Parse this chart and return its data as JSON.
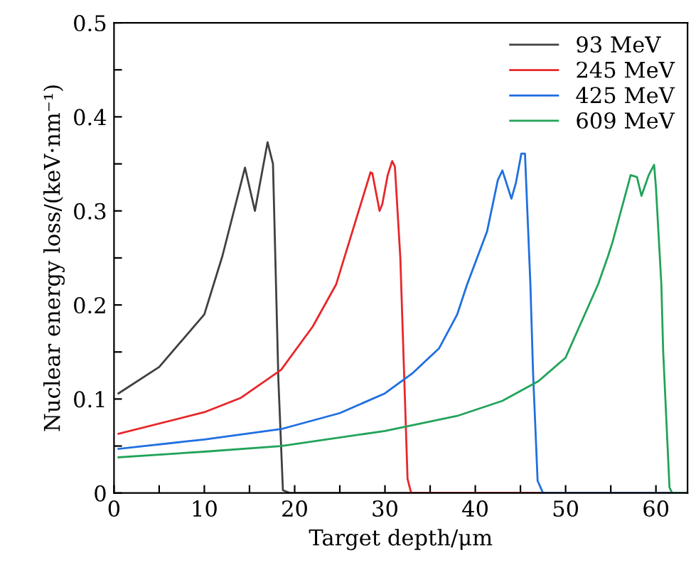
{
  "chart_data": {
    "type": "line",
    "xlabel": "Target depth/μm",
    "ylabel": "Nuclear energy loss/(keV·nm⁻¹)",
    "xlim": [
      0,
      63.5
    ],
    "ylim": [
      0,
      0.5
    ],
    "xticks": [
      0,
      {
        "value": 5,
        "label": null
      },
      10,
      {
        "value": 15,
        "label": null
      },
      20,
      {
        "value": 25,
        "label": null
      },
      30,
      {
        "value": 35,
        "label": null
      },
      40,
      {
        "value": 45,
        "label": null
      },
      50,
      {
        "value": 55,
        "label": null
      },
      60
    ],
    "yticks": [
      0,
      {
        "value": 0.05,
        "label": null
      },
      0.1,
      {
        "value": 0.15,
        "label": null
      },
      0.2,
      {
        "value": 0.25,
        "label": null
      },
      0.3,
      {
        "value": 0.35,
        "label": null
      },
      0.4,
      {
        "value": 0.45,
        "label": null
      },
      0.5
    ],
    "legend": "top right",
    "grid": false,
    "marker": "none",
    "line_style": "solid",
    "series": [
      {
        "name": "93 MeV",
        "color": "#404040",
        "x": [
          0.5,
          5,
          10,
          12,
          14.5,
          15.6,
          17.0,
          17.6,
          18.2,
          18.7,
          19.5,
          63.5
        ],
        "values": [
          0.106,
          0.134,
          0.19,
          0.252,
          0.346,
          0.3,
          0.373,
          0.35,
          0.12,
          0.003,
          0,
          0
        ]
      },
      {
        "name": "245 MeV",
        "color": "#e8262a",
        "x": [
          0.5,
          10,
          14,
          18.5,
          22,
          24.6,
          28.4,
          28.6,
          29.4,
          29.7,
          30.3,
          30.8,
          31.1,
          31.7,
          32.5,
          32.9,
          63.5
        ],
        "values": [
          0.063,
          0.086,
          0.101,
          0.131,
          0.177,
          0.222,
          0.341,
          0.34,
          0.3,
          0.307,
          0.338,
          0.353,
          0.347,
          0.25,
          0.015,
          0,
          0
        ]
      },
      {
        "name": "425 MeV",
        "color": "#1f6fe0",
        "x": [
          0.5,
          10,
          18.5,
          25,
          30,
          33,
          36,
          38,
          39.1,
          41.3,
          42.5,
          43.0,
          44.0,
          44.5,
          45.1,
          45.5,
          46.1,
          46.4,
          46.9,
          47.5,
          63.5
        ],
        "values": [
          0.047,
          0.057,
          0.068,
          0.085,
          0.106,
          0.127,
          0.154,
          0.19,
          0.222,
          0.278,
          0.333,
          0.343,
          0.313,
          0.33,
          0.361,
          0.361,
          0.222,
          0.127,
          0.013,
          0,
          0
        ]
      },
      {
        "name": "609 MeV",
        "color": "#22a35a",
        "x": [
          0.5,
          10,
          18.5,
          30,
          38,
          43,
          47,
          50,
          53.6,
          54.7,
          55.2,
          57.2,
          57.9,
          58.4,
          59.2,
          59.8,
          60.0,
          60.6,
          60.8,
          61.5,
          61.8,
          63.5
        ],
        "values": [
          0.038,
          0.044,
          0.05,
          0.066,
          0.082,
          0.098,
          0.119,
          0.144,
          0.222,
          0.252,
          0.267,
          0.338,
          0.336,
          0.316,
          0.338,
          0.349,
          0.325,
          0.222,
          0.151,
          0.006,
          0,
          0
        ]
      }
    ]
  }
}
